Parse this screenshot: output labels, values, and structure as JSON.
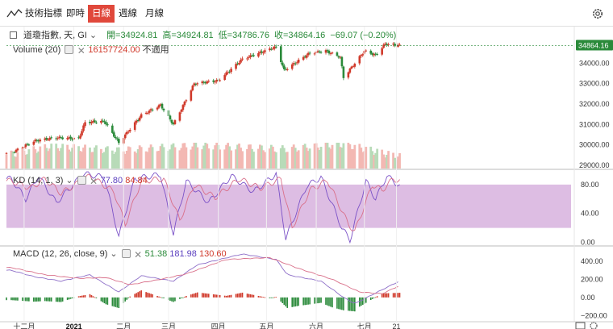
{
  "toolbar": {
    "indicators_label": "技術指標",
    "periods": [
      "即時",
      "日線",
      "週線",
      "月線"
    ],
    "active_period": "日線"
  },
  "price_header": {
    "symbol": "道瓊指數, 天, GI",
    "open": "開=34924.81",
    "high": "高=34924.81",
    "low": "低=34786.76",
    "close": "收=34864.16",
    "change": "−69.07 (−0.20%)"
  },
  "volume_header": {
    "label": "Volume (20)",
    "value": "16157724.00",
    "ma": "不適用"
  },
  "kd_header": {
    "label": "KD (14, 1, 3)",
    "k": "77.80",
    "d": "84.84"
  },
  "macd_header": {
    "label": "MACD (12, 26, close, 9)",
    "hist": "51.38",
    "macd": "181.98",
    "signal": "130.60"
  },
  "last_price_tag": "34864.16",
  "colors": {
    "up": "#d0392a",
    "down": "#2a8a3a",
    "vol_up": "#f3b8b3",
    "vol_down": "#b8dbb8",
    "k_line": "#7b52c7",
    "d_line": "#d9708a",
    "kd_band": "#d7b2de",
    "macd_line": "#8e6fc8",
    "signal_line": "#d9708a",
    "accent": "#e0483b"
  },
  "chart_data": [
    {
      "type": "candlestick",
      "title": "道瓊指數, 天, GI",
      "x_tick_labels": [
        "十二月",
        "2021",
        "二月",
        "三月",
        "四月",
        "五月",
        "六月",
        "七月",
        "21"
      ],
      "y_tick_labels": [
        "34000.00",
        "33000.00",
        "32000.00",
        "31000.00",
        "30000.00",
        "29000.00"
      ],
      "ylim": [
        28800,
        35400
      ],
      "anchors": [
        {
          "x": "2020-11-23",
          "y": 29600
        },
        {
          "x": "2020-11-30",
          "y": 29900
        },
        {
          "x": "2020-12-08",
          "y": 30200
        },
        {
          "x": "2020-12-21",
          "y": 30350
        },
        {
          "x": "2021-01-04",
          "y": 30300
        },
        {
          "x": "2021-01-08",
          "y": 31100
        },
        {
          "x": "2021-01-20",
          "y": 31150
        },
        {
          "x": "2021-01-29",
          "y": 30100
        },
        {
          "x": "2021-02-12",
          "y": 31450
        },
        {
          "x": "2021-02-24",
          "y": 31950
        },
        {
          "x": "2021-03-04",
          "y": 31000
        },
        {
          "x": "2021-03-17",
          "y": 33000
        },
        {
          "x": "2021-04-01",
          "y": 33150
        },
        {
          "x": "2021-04-16",
          "y": 34200
        },
        {
          "x": "2021-05-07",
          "y": 34800
        },
        {
          "x": "2021-05-12",
          "y": 33650
        },
        {
          "x": "2021-05-28",
          "y": 34500
        },
        {
          "x": "2021-06-07",
          "y": 34600
        },
        {
          "x": "2021-06-16",
          "y": 34300
        },
        {
          "x": "2021-06-18",
          "y": 33300
        },
        {
          "x": "2021-07-01",
          "y": 34600
        },
        {
          "x": "2021-07-08",
          "y": 34400
        },
        {
          "x": "2021-07-14",
          "y": 34950
        },
        {
          "x": "2021-07-23",
          "y": 34864
        }
      ]
    },
    {
      "type": "bar",
      "title": "Volume (20)",
      "ylim": [
        0,
        1
      ],
      "level_anchors": [
        {
          "x": "2020-11-23",
          "y": 0.55
        },
        {
          "x": "2020-12-18",
          "y": 0.85
        },
        {
          "x": "2021-01-29",
          "y": 0.7
        },
        {
          "x": "2021-03-19",
          "y": 0.9
        },
        {
          "x": "2021-05-12",
          "y": 0.75
        },
        {
          "x": "2021-06-18",
          "y": 0.95
        },
        {
          "x": "2021-07-23",
          "y": 0.45
        }
      ]
    },
    {
      "type": "line",
      "title": "KD (14, 1, 3)",
      "y_tick_labels": [
        "80.00",
        "40.00",
        "0.00"
      ],
      "ylim": [
        -5,
        100
      ],
      "band": [
        20,
        80
      ],
      "k_anchors": [
        {
          "x": "2020-11-23",
          "y": 88
        },
        {
          "x": "2020-12-02",
          "y": 60
        },
        {
          "x": "2020-12-10",
          "y": 92
        },
        {
          "x": "2020-12-21",
          "y": 55
        },
        {
          "x": "2021-01-07",
          "y": 95
        },
        {
          "x": "2021-01-20",
          "y": 90
        },
        {
          "x": "2021-01-29",
          "y": 8
        },
        {
          "x": "2021-02-08",
          "y": 88
        },
        {
          "x": "2021-02-24",
          "y": 94
        },
        {
          "x": "2021-03-04",
          "y": 12
        },
        {
          "x": "2021-03-12",
          "y": 85
        },
        {
          "x": "2021-03-26",
          "y": 55
        },
        {
          "x": "2021-04-09",
          "y": 92
        },
        {
          "x": "2021-04-23",
          "y": 70
        },
        {
          "x": "2021-05-07",
          "y": 95
        },
        {
          "x": "2021-05-13",
          "y": 5
        },
        {
          "x": "2021-05-26",
          "y": 78
        },
        {
          "x": "2021-06-04",
          "y": 90
        },
        {
          "x": "2021-06-17",
          "y": 20
        },
        {
          "x": "2021-06-22",
          "y": 3
        },
        {
          "x": "2021-07-02",
          "y": 85
        },
        {
          "x": "2021-07-08",
          "y": 60
        },
        {
          "x": "2021-07-15",
          "y": 92
        },
        {
          "x": "2021-07-23",
          "y": 77.8
        }
      ],
      "d_anchors": [
        {
          "x": "2020-11-23",
          "y": 85
        },
        {
          "x": "2020-12-05",
          "y": 75
        },
        {
          "x": "2020-12-14",
          "y": 88
        },
        {
          "x": "2020-12-24",
          "y": 68
        },
        {
          "x": "2021-01-11",
          "y": 92
        },
        {
          "x": "2021-01-26",
          "y": 70
        },
        {
          "x": "2021-02-02",
          "y": 25
        },
        {
          "x": "2021-02-12",
          "y": 85
        },
        {
          "x": "2021-02-26",
          "y": 88
        },
        {
          "x": "2021-03-08",
          "y": 30
        },
        {
          "x": "2021-03-17",
          "y": 80
        },
        {
          "x": "2021-03-30",
          "y": 62
        },
        {
          "x": "2021-04-14",
          "y": 88
        },
        {
          "x": "2021-04-27",
          "y": 75
        },
        {
          "x": "2021-05-10",
          "y": 88
        },
        {
          "x": "2021-05-17",
          "y": 20
        },
        {
          "x": "2021-05-28",
          "y": 72
        },
        {
          "x": "2021-06-08",
          "y": 86
        },
        {
          "x": "2021-06-21",
          "y": 25
        },
        {
          "x": "2021-06-25",
          "y": 15
        },
        {
          "x": "2021-07-06",
          "y": 80
        },
        {
          "x": "2021-07-12",
          "y": 72
        },
        {
          "x": "2021-07-19",
          "y": 88
        },
        {
          "x": "2021-07-23",
          "y": 84.84
        }
      ]
    },
    {
      "type": "line",
      "title": "MACD (12, 26, close, 9)",
      "y_tick_labels": [
        "400.00",
        "200.00",
        "0.00",
        "−200.00"
      ],
      "ylim": [
        -260,
        560
      ],
      "macd_anchors": [
        {
          "x": "2020-11-23",
          "y": 300
        },
        {
          "x": "2020-12-07",
          "y": 230
        },
        {
          "x": "2020-12-24",
          "y": 180
        },
        {
          "x": "2021-01-11",
          "y": 250
        },
        {
          "x": "2021-01-29",
          "y": 60
        },
        {
          "x": "2021-02-12",
          "y": 240
        },
        {
          "x": "2021-03-04",
          "y": 180
        },
        {
          "x": "2021-03-19",
          "y": 360
        },
        {
          "x": "2021-04-16",
          "y": 480
        },
        {
          "x": "2021-05-07",
          "y": 420
        },
        {
          "x": "2021-05-14",
          "y": 250
        },
        {
          "x": "2021-06-04",
          "y": 180
        },
        {
          "x": "2021-06-18",
          "y": 0
        },
        {
          "x": "2021-06-25",
          "y": -70
        },
        {
          "x": "2021-07-07",
          "y": 40
        },
        {
          "x": "2021-07-23",
          "y": 182
        }
      ],
      "signal_anchors": [
        {
          "x": "2020-11-23",
          "y": 330
        },
        {
          "x": "2020-12-14",
          "y": 250
        },
        {
          "x": "2021-01-04",
          "y": 210
        },
        {
          "x": "2021-01-21",
          "y": 220
        },
        {
          "x": "2021-02-05",
          "y": 140
        },
        {
          "x": "2021-02-24",
          "y": 200
        },
        {
          "x": "2021-03-12",
          "y": 260
        },
        {
          "x": "2021-04-06",
          "y": 420
        },
        {
          "x": "2021-05-03",
          "y": 440
        },
        {
          "x": "2021-05-21",
          "y": 320
        },
        {
          "x": "2021-06-11",
          "y": 200
        },
        {
          "x": "2021-06-28",
          "y": 60
        },
        {
          "x": "2021-07-12",
          "y": 40
        },
        {
          "x": "2021-07-23",
          "y": 131
        }
      ]
    }
  ]
}
